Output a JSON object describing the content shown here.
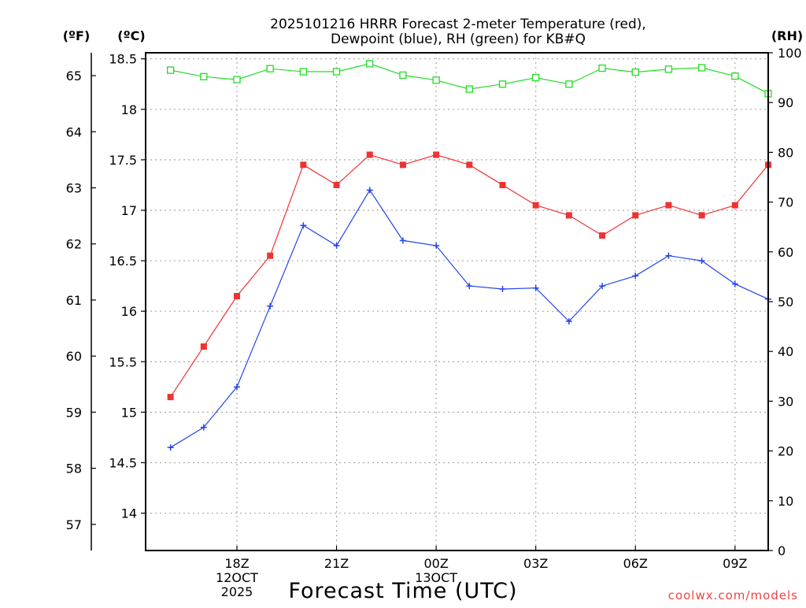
{
  "chart_data": {
    "type": "line",
    "title_line1": "2025101216 HRRR Forecast 2-meter Temperature (red),",
    "title_line2": "Dewpoint (blue), RH (green) for KB#Q",
    "xlabel": "Forecast Time (UTC)",
    "watermark": "coolwx.com/models",
    "units": {
      "fahrenheit": "(ºF)",
      "celsius": "(ºC)",
      "rh": "(RH)"
    },
    "x_hours": [
      16,
      17,
      18,
      19,
      20,
      21,
      22,
      23,
      24,
      25,
      26,
      27,
      28,
      29,
      30,
      31,
      32,
      33,
      34
    ],
    "x_range": [
      15.25,
      34.0
    ],
    "x_ticks": [
      {
        "hour": 18,
        "lines": [
          "18Z",
          "12OCT",
          "2025"
        ]
      },
      {
        "hour": 21,
        "lines": [
          "21Z"
        ]
      },
      {
        "hour": 24,
        "lines": [
          "00Z",
          "13OCT"
        ]
      },
      {
        "hour": 27,
        "lines": [
          "03Z"
        ]
      },
      {
        "hour": 30,
        "lines": [
          "06Z"
        ]
      },
      {
        "hour": 33,
        "lines": [
          "09Z"
        ]
      }
    ],
    "x_grid": [
      18,
      21,
      24,
      27,
      30,
      33
    ],
    "celsius_axis": {
      "range": [
        13.63,
        18.56
      ],
      "ticks": [
        14,
        14.5,
        15,
        15.5,
        16,
        16.5,
        17,
        17.5,
        18,
        18.5
      ],
      "tick_labels": [
        "14",
        "14.5",
        "15",
        "15.5",
        "16",
        "16.5",
        "17",
        "17.5",
        "18",
        "18.5"
      ]
    },
    "fahrenheit_axis": {
      "ticks": [
        57,
        58,
        59,
        60,
        61,
        62,
        63,
        64,
        65
      ],
      "tick_labels": [
        "57",
        "58",
        "59",
        "60",
        "61",
        "62",
        "63",
        "64",
        "65"
      ]
    },
    "rh_axis": {
      "range": [
        0,
        100
      ],
      "ticks": [
        0,
        10,
        20,
        30,
        40,
        50,
        60,
        70,
        80,
        90,
        100
      ],
      "tick_labels": [
        "0",
        "10",
        "20",
        "30",
        "40",
        "50",
        "60",
        "70",
        "80",
        "90",
        "100"
      ]
    },
    "series": [
      {
        "name": "Temperature",
        "axis": "celsius",
        "color": "#ee3333",
        "marker": "filled-square",
        "values": [
          15.15,
          15.65,
          16.15,
          16.55,
          17.45,
          17.25,
          17.55,
          17.45,
          17.55,
          17.45,
          17.25,
          17.05,
          16.95,
          16.75,
          16.95,
          17.05,
          16.95,
          17.05,
          17.45
        ]
      },
      {
        "name": "Dewpoint",
        "axis": "celsius",
        "color": "#2244ee",
        "marker": "plus",
        "values": [
          14.65,
          14.85,
          15.25,
          16.05,
          16.85,
          16.65,
          17.2,
          16.7,
          16.65,
          16.25,
          16.22,
          16.23,
          15.9,
          16.25,
          16.35,
          16.55,
          16.5,
          16.27,
          16.12
        ]
      },
      {
        "name": "RH",
        "axis": "rh",
        "color": "#22dd22",
        "marker": "open-square",
        "values": [
          96.5,
          95.2,
          94.6,
          96.8,
          96.2,
          96.2,
          97.8,
          95.5,
          94.5,
          92.7,
          93.7,
          95.0,
          93.7,
          96.9,
          96.1,
          96.7,
          97.0,
          95.3,
          91.8
        ]
      }
    ]
  }
}
